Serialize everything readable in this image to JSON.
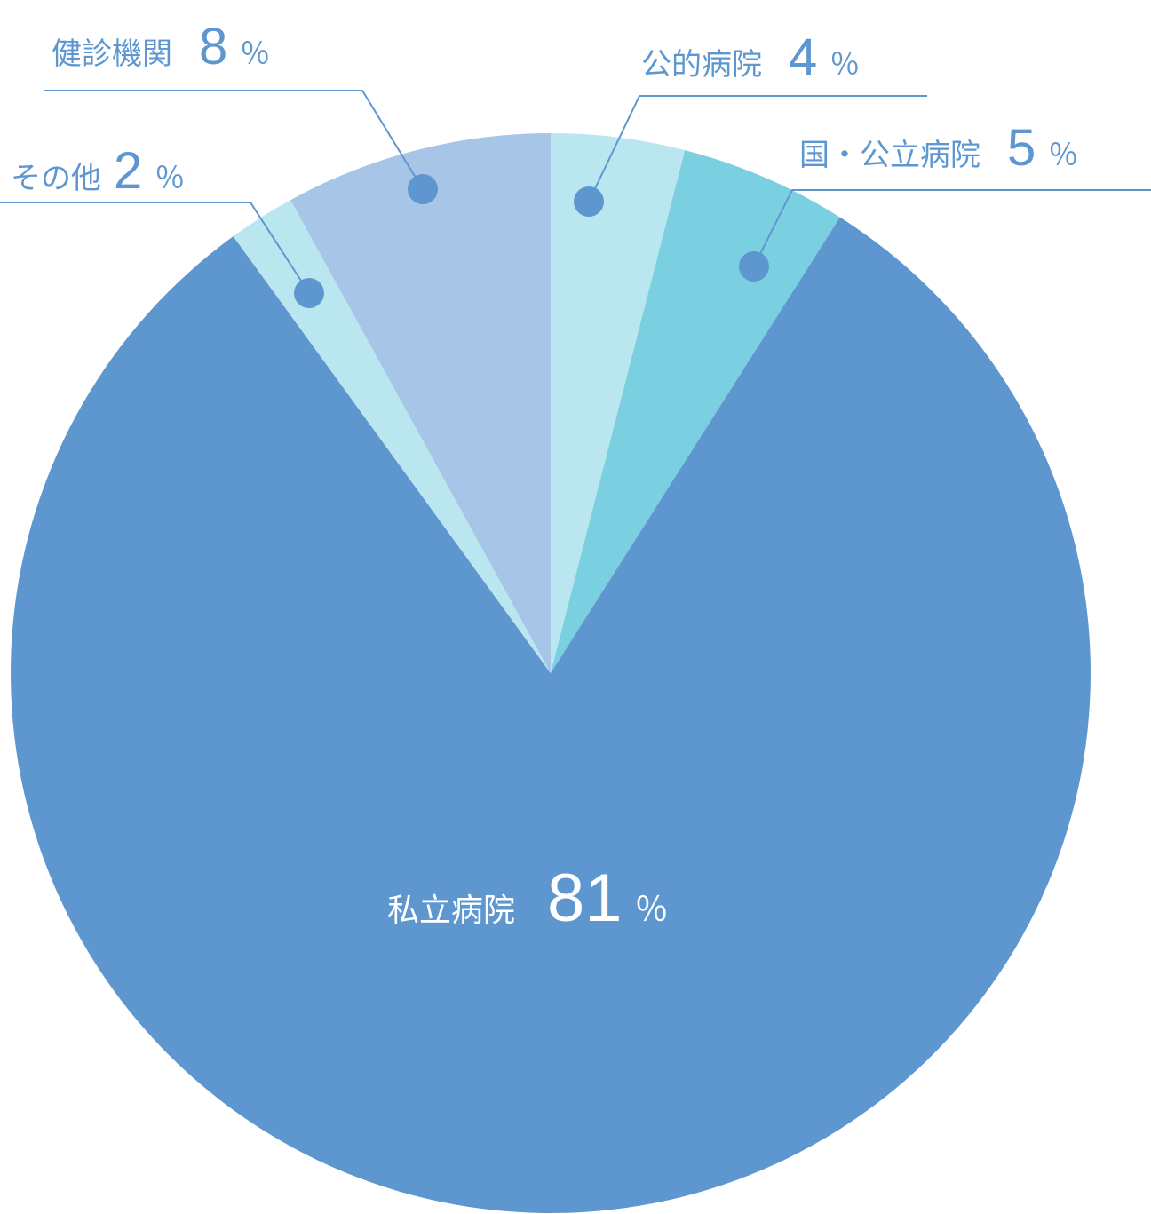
{
  "chart_data": {
    "type": "pie",
    "slices": [
      {
        "label": "公的病院",
        "value": 4,
        "color": "#bae6ef"
      },
      {
        "label": "国・公立病院",
        "value": 5,
        "color": "#7acfe0"
      },
      {
        "label": "私立病院",
        "value": 81,
        "color": "#5e97d0"
      },
      {
        "label": "その他",
        "value": 2,
        "color": "#bae6ef"
      },
      {
        "label": "健診機関",
        "value": 8,
        "color": "#a6c5e7"
      }
    ],
    "unit": "％",
    "start": "12 o'clock",
    "direction": "clockwise",
    "label_color": "#5e97d0",
    "inner_label_color": "#ffffff"
  }
}
